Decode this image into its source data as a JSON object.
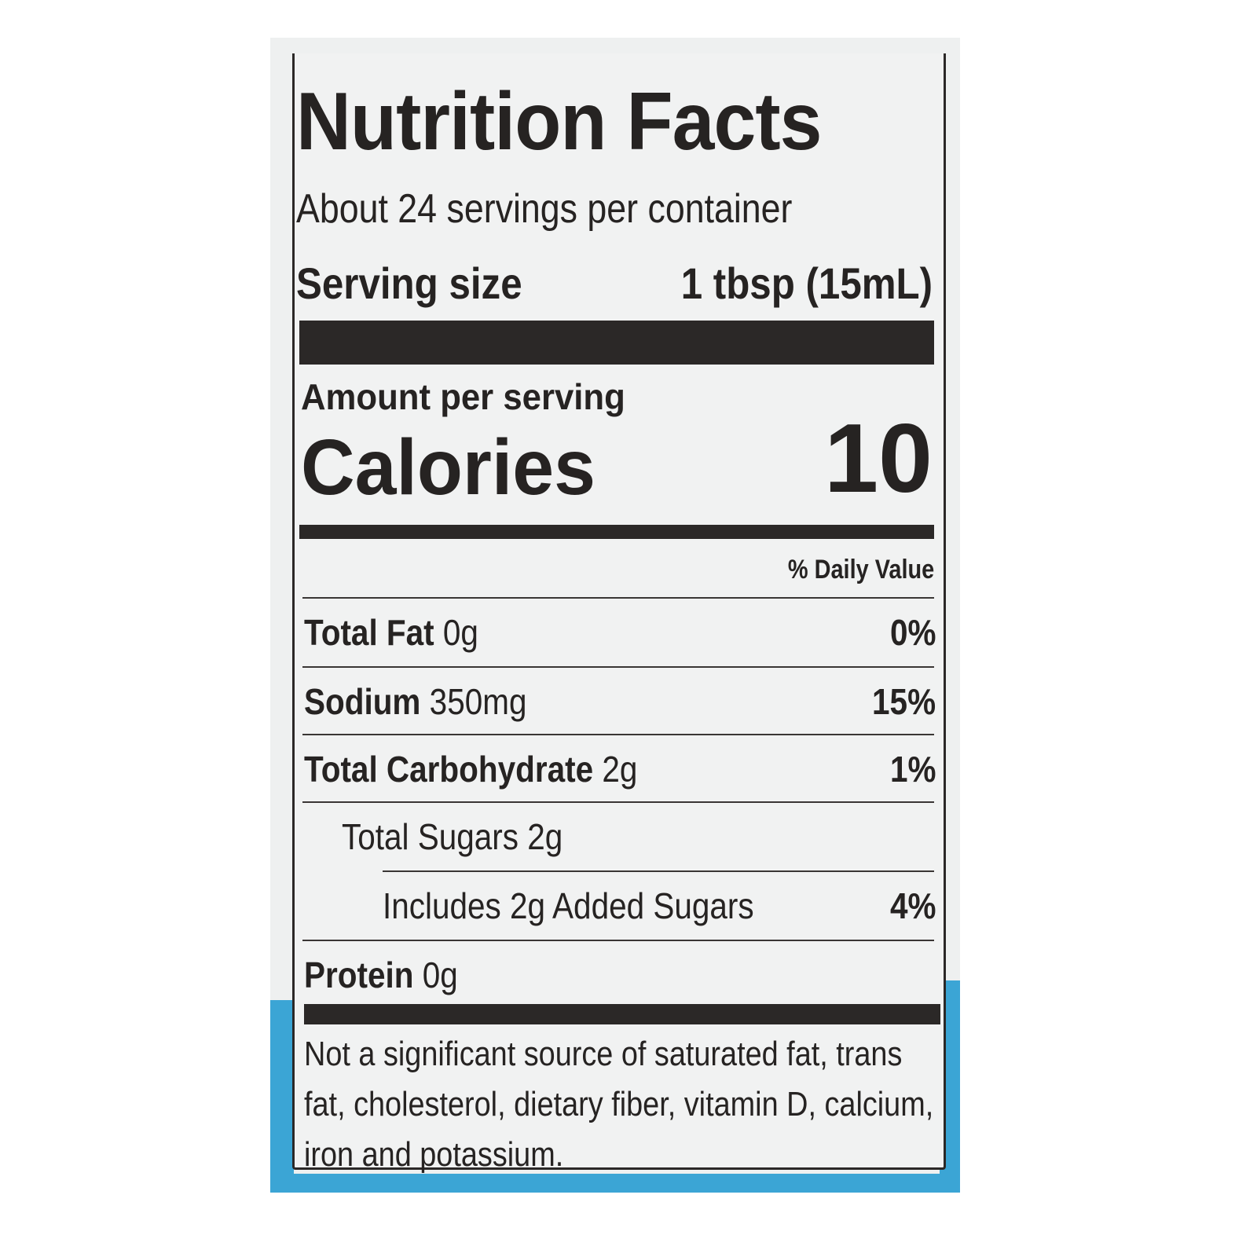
{
  "colors": {
    "label_bg": "#f1f2f2",
    "ink": "#262322",
    "package_blue": "#3ba5d5"
  },
  "title": "Nutrition Facts",
  "servings_per_container": "About 24 servings per container",
  "serving_size": {
    "label": "Serving size",
    "value": "1 tbsp (15mL)"
  },
  "amount_per_serving": "Amount per serving",
  "calories": {
    "label": "Calories",
    "value": "10"
  },
  "daily_value_header": "% Daily Value",
  "nutrients": [
    {
      "name": "Total Fat",
      "amount": "0g",
      "dv": "0%"
    },
    {
      "name": "Sodium",
      "amount": "350mg",
      "dv": "15%"
    },
    {
      "name": "Total Carbohydrate",
      "amount": "2g",
      "dv": "1%"
    },
    {
      "name": "Total Sugars 2g",
      "amount": "",
      "dv": ""
    },
    {
      "name": "Includes 2g Added Sugars",
      "amount": "",
      "dv": "4%"
    },
    {
      "name": "Protein",
      "amount": "0g",
      "dv": ""
    }
  ],
  "footnote": "Not a significant source of saturated fat, trans fat, cholesterol, dietary fiber, vitamin D, calcium, iron and potassium."
}
